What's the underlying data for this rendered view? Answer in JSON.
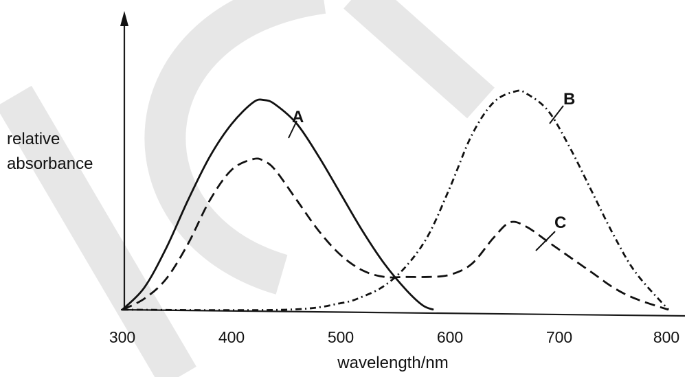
{
  "chart_data": {
    "type": "line",
    "xlabel": "wavelength/nm",
    "ylabel": [
      "relative",
      "absorbance"
    ],
    "x_ticks": [
      300,
      400,
      500,
      600,
      700,
      800
    ],
    "xlim": [
      300,
      800
    ],
    "ylim": [
      0,
      1
    ],
    "y_ticks_shown": false,
    "grid": false,
    "legend": "none (series labelled directly on curves)",
    "series": [
      {
        "name": "A",
        "style": "solid",
        "x": [
          300,
          320,
          340,
          360,
          380,
          400,
          420,
          430,
          440,
          460,
          480,
          500,
          520,
          540,
          560,
          575,
          585
        ],
        "y": [
          0.0,
          0.1,
          0.28,
          0.5,
          0.7,
          0.85,
          0.95,
          0.96,
          0.94,
          0.85,
          0.7,
          0.53,
          0.36,
          0.21,
          0.09,
          0.02,
          0.0
        ]
      },
      {
        "name": "B",
        "style": "dash-dot",
        "x": [
          300,
          450,
          500,
          520,
          540,
          560,
          580,
          600,
          620,
          640,
          660,
          670,
          690,
          710,
          730,
          750,
          770,
          800
        ],
        "y": [
          0.0,
          0.0,
          0.03,
          0.06,
          0.11,
          0.2,
          0.34,
          0.56,
          0.8,
          0.95,
          1.0,
          0.99,
          0.91,
          0.74,
          0.54,
          0.34,
          0.17,
          0.0
        ]
      },
      {
        "name": "C",
        "style": "dashed",
        "x": [
          300,
          320,
          340,
          360,
          380,
          400,
          420,
          430,
          440,
          460,
          480,
          500,
          520,
          540,
          560,
          580,
          600,
          620,
          640,
          655,
          670,
          690,
          710,
          730,
          750,
          770,
          800
        ],
        "y": [
          0.0,
          0.05,
          0.14,
          0.3,
          0.5,
          0.64,
          0.69,
          0.68,
          0.64,
          0.5,
          0.36,
          0.25,
          0.18,
          0.15,
          0.15,
          0.15,
          0.16,
          0.21,
          0.33,
          0.4,
          0.38,
          0.31,
          0.24,
          0.17,
          0.1,
          0.05,
          0.0
        ]
      }
    ]
  }
}
